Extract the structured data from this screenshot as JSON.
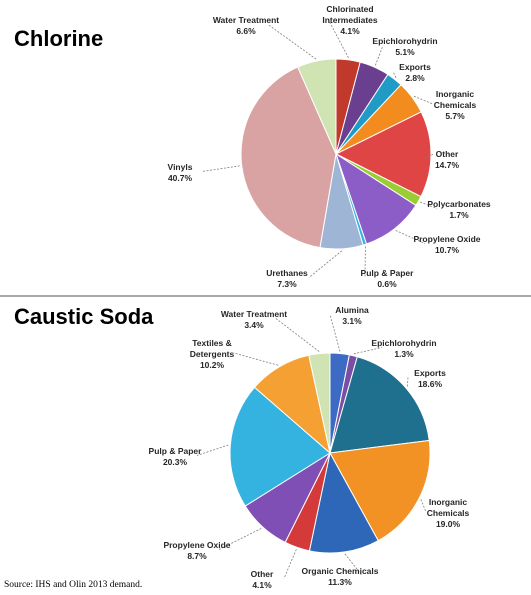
{
  "source_note": "Source: IHS and Olin 2013 demand.",
  "chart_data": [
    {
      "type": "pie",
      "title": "Chlorine",
      "slices": [
        {
          "label": [
            "Chlorinated",
            "Intermediates"
          ],
          "value": 4.1,
          "display": "4.1%",
          "color": "#c0392b"
        },
        {
          "label": [
            "Epichlorohydrin"
          ],
          "value": 5.1,
          "display": "5.1%",
          "color": "#6a3f8f"
        },
        {
          "label": [
            "Exports"
          ],
          "value": 2.8,
          "display": "2.8%",
          "color": "#1f9bc6"
        },
        {
          "label": [
            "Inorganic",
            "Chemicals"
          ],
          "value": 5.7,
          "display": "5.7%",
          "color": "#f28c1e"
        },
        {
          "label": [
            "Other"
          ],
          "value": 14.7,
          "display": "14.7%",
          "color": "#e04545"
        },
        {
          "label": [
            "Polycarbonates"
          ],
          "value": 1.7,
          "display": "1.7%",
          "color": "#9acd32"
        },
        {
          "label": [
            "Propylene Oxide"
          ],
          "value": 10.7,
          "display": "10.7%",
          "color": "#8c5cc7"
        },
        {
          "label": [
            "Pulp & Paper"
          ],
          "value": 0.6,
          "display": "0.6%",
          "color": "#33b5e5"
        },
        {
          "label": [
            "Urethanes"
          ],
          "value": 7.3,
          "display": "7.3%",
          "color": "#9fb5d6"
        },
        {
          "label": [
            "Vinyls"
          ],
          "value": 40.7,
          "display": "40.7%",
          "color": "#d9a3a3"
        },
        {
          "label": [
            "Water Treatment"
          ],
          "value": 6.6,
          "display": "6.6%",
          "color": "#cfe3b3"
        }
      ]
    },
    {
      "type": "pie",
      "title": "Caustic Soda",
      "slices": [
        {
          "label": [
            "Alumina"
          ],
          "value": 3.1,
          "display": "3.1%",
          "color": "#3d6bc4"
        },
        {
          "label": [
            "Epichlorohydrin"
          ],
          "value": 1.3,
          "display": "1.3%",
          "color": "#7a4ea3"
        },
        {
          "label": [
            "Exports"
          ],
          "value": 18.6,
          "display": "18.6%",
          "color": "#1f6f8f"
        },
        {
          "label": [
            "Inorganic",
            "Chemicals"
          ],
          "value": 19.0,
          "display": "19.0%",
          "color": "#f29124"
        },
        {
          "label": [
            "Organic Chemicals"
          ],
          "value": 11.3,
          "display": "11.3%",
          "color": "#2e67b8"
        },
        {
          "label": [
            "Other"
          ],
          "value": 4.1,
          "display": "4.1%",
          "color": "#d43a3a"
        },
        {
          "label": [
            "Propylene Oxide"
          ],
          "value": 8.7,
          "display": "8.7%",
          "color": "#7f4fb5"
        },
        {
          "label": [
            "Pulp & Paper"
          ],
          "value": 20.3,
          "display": "20.3%",
          "color": "#35b3e0"
        },
        {
          "label": [
            "Textiles &",
            "Detergents"
          ],
          "value": 10.2,
          "display": "10.2%",
          "color": "#f5a033"
        },
        {
          "label": [
            "Water Treatment"
          ],
          "value": 3.4,
          "display": "3.4%",
          "color": "#cfe3b3"
        }
      ]
    }
  ]
}
